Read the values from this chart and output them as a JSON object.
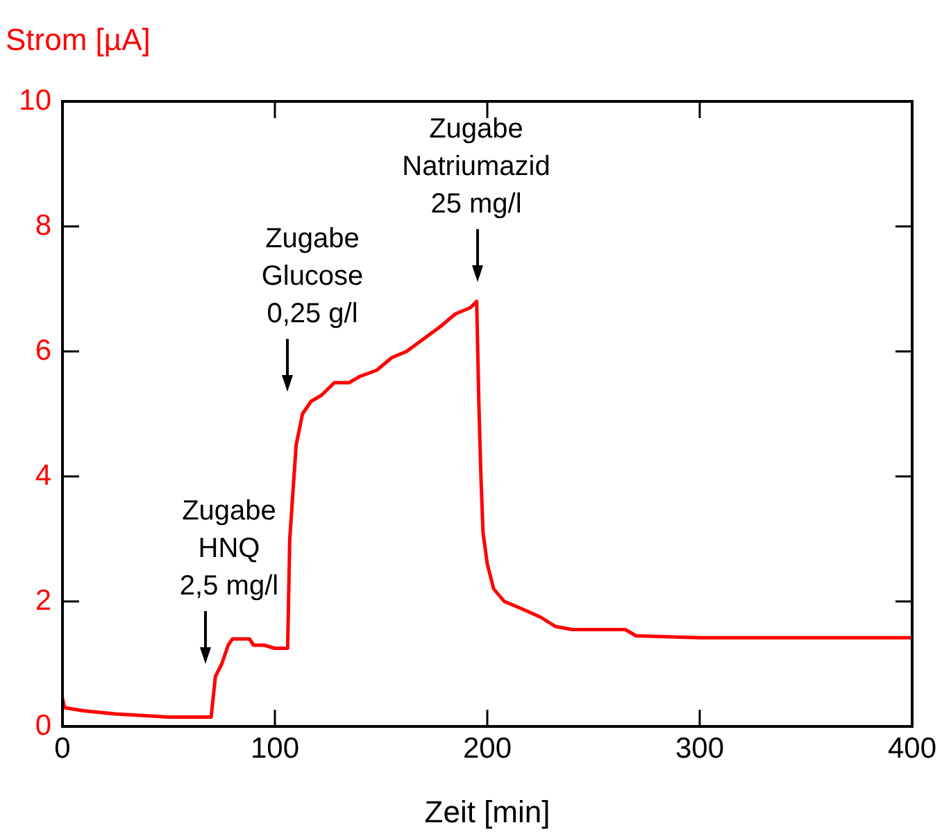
{
  "chart_data": {
    "type": "line",
    "xlabel": "Zeit [min]",
    "ylabel": "Strom [µA]",
    "xlim": [
      0,
      400
    ],
    "xticks": [
      0,
      100,
      200,
      300,
      400
    ],
    "ylim": [
      0,
      10
    ],
    "yticks": [
      0,
      2,
      4,
      6,
      8,
      10
    ],
    "grid": false,
    "legend": false,
    "marker": "none",
    "line_style": "solid",
    "series": [
      {
        "color": "#ff0000",
        "x": [
          0,
          1,
          10,
          25,
          50,
          70,
          72,
          75,
          78,
          80,
          88,
          90,
          95,
          100,
          106,
          107,
          110,
          113,
          117,
          122,
          128,
          135,
          140,
          148,
          155,
          162,
          170,
          178,
          185,
          192,
          195,
          196,
          197,
          198,
          200,
          203,
          208,
          215,
          225,
          232,
          240,
          265,
          270,
          300,
          400
        ],
        "values": [
          0.45,
          0.3,
          0.25,
          0.2,
          0.15,
          0.15,
          0.8,
          1.0,
          1.3,
          1.4,
          1.4,
          1.3,
          1.3,
          1.25,
          1.25,
          3,
          4.5,
          5.0,
          5.2,
          5.3,
          5.5,
          5.5,
          5.6,
          5.7,
          5.9,
          6.0,
          6.2,
          6.4,
          6.6,
          6.7,
          6.8,
          5.2,
          4.0,
          3.1,
          2.6,
          2.2,
          2.0,
          1.9,
          1.75,
          1.6,
          1.55,
          1.55,
          1.45,
          1.42,
          1.42
        ]
      }
    ],
    "annotations": [
      "Zugabe\nHNQ\n2,5 mg/l",
      "Zugabe\nGlucose\n0,25 g/l",
      "Zugabe\nNatriumazid\n25 mg/l"
    ]
  }
}
